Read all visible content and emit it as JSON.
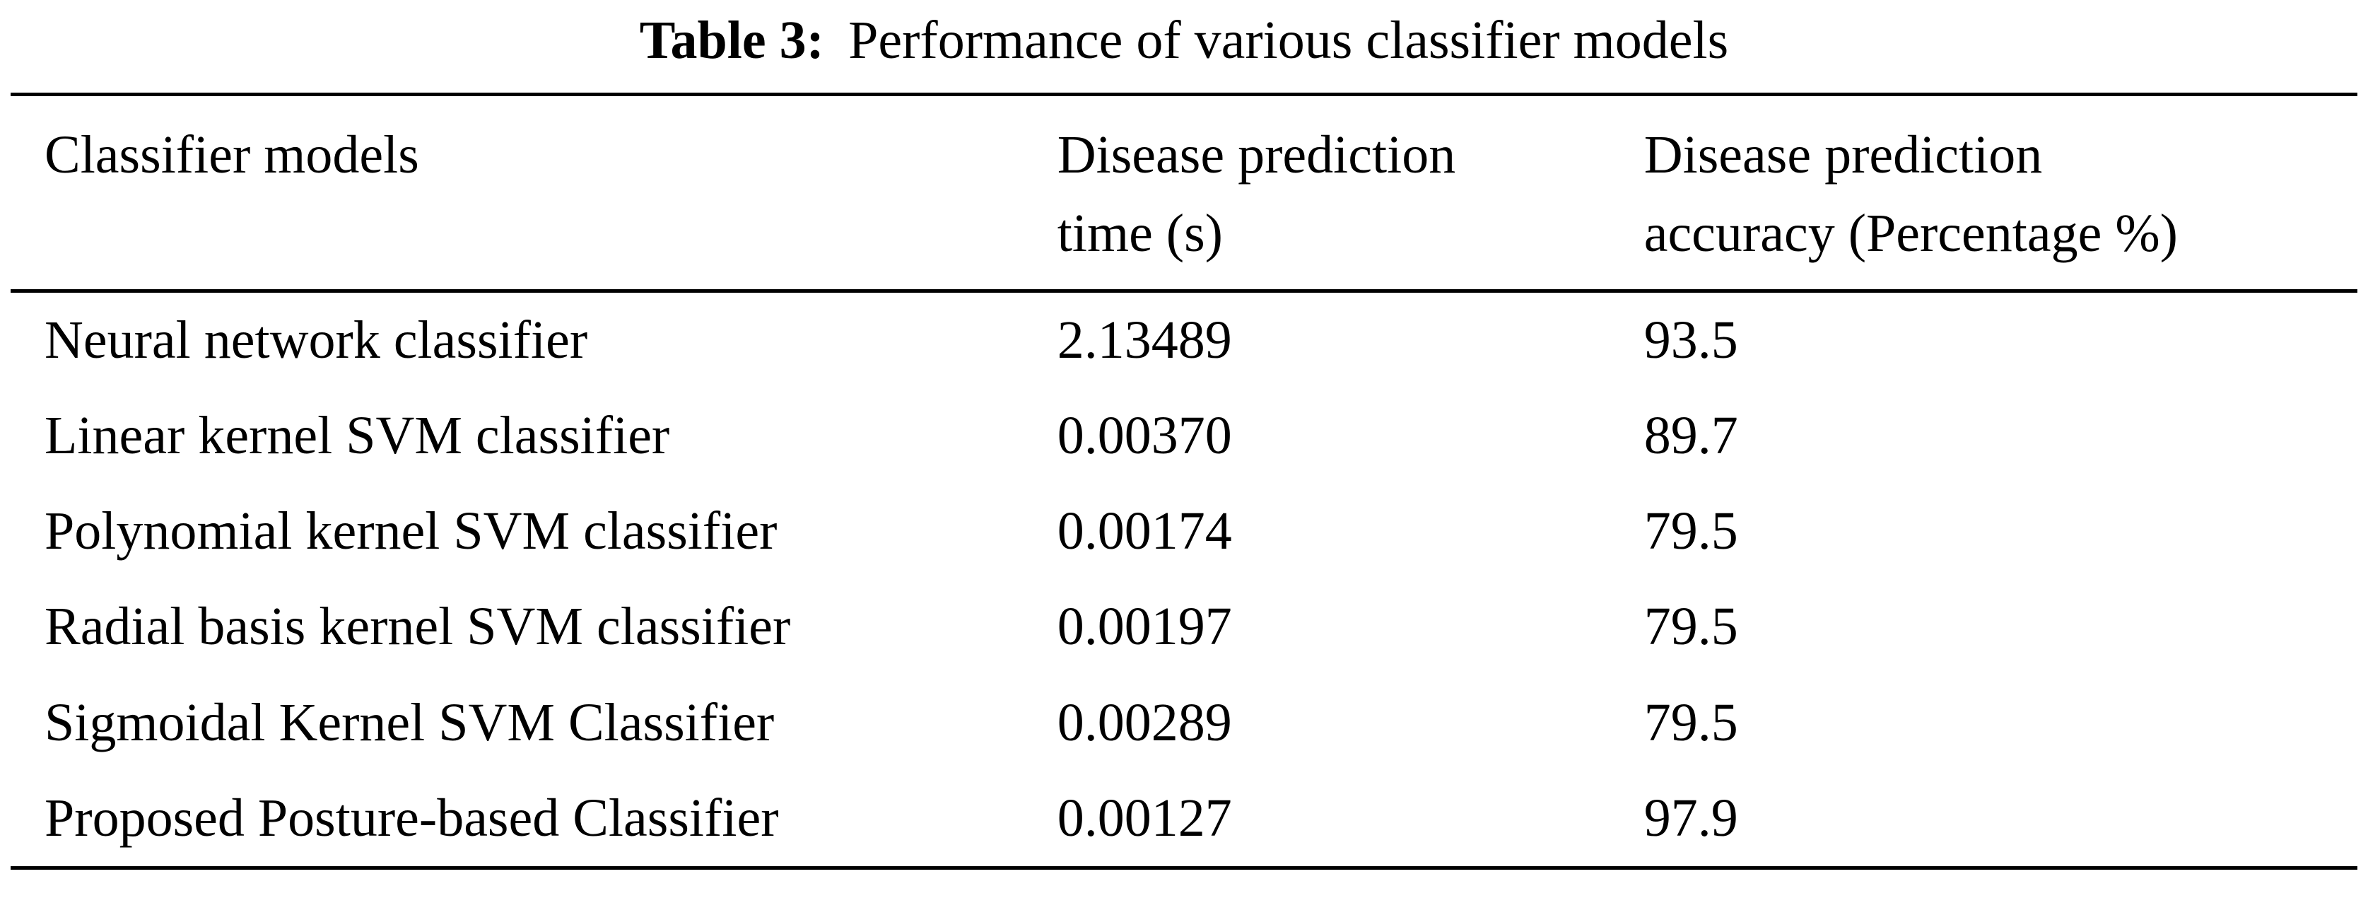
{
  "caption": {
    "label": "Table 3:",
    "text": "Performance of various classifier models"
  },
  "table": {
    "headers": [
      {
        "line1": "Classifier models",
        "line2": ""
      },
      {
        "line1": "Disease prediction",
        "line2": "time (s)"
      },
      {
        "line1": "Disease prediction",
        "line2": "accuracy (Percentage %)"
      }
    ],
    "rows": [
      {
        "model": "Neural network classifier",
        "time": "2.13489",
        "accuracy": "93.5"
      },
      {
        "model": "Linear kernel SVM classifier",
        "time": "0.00370",
        "accuracy": "89.7"
      },
      {
        "model": "Polynomial kernel SVM classifier",
        "time": "0.00174",
        "accuracy": "79.5"
      },
      {
        "model": "Radial basis kernel SVM classifier",
        "time": "0.00197",
        "accuracy": "79.5"
      },
      {
        "model": "Sigmoidal Kernel SVM Classifier",
        "time": "0.00289",
        "accuracy": "79.5"
      },
      {
        "model": "Proposed Posture-based Classifier",
        "time": "0.00127",
        "accuracy": "97.9"
      }
    ]
  }
}
